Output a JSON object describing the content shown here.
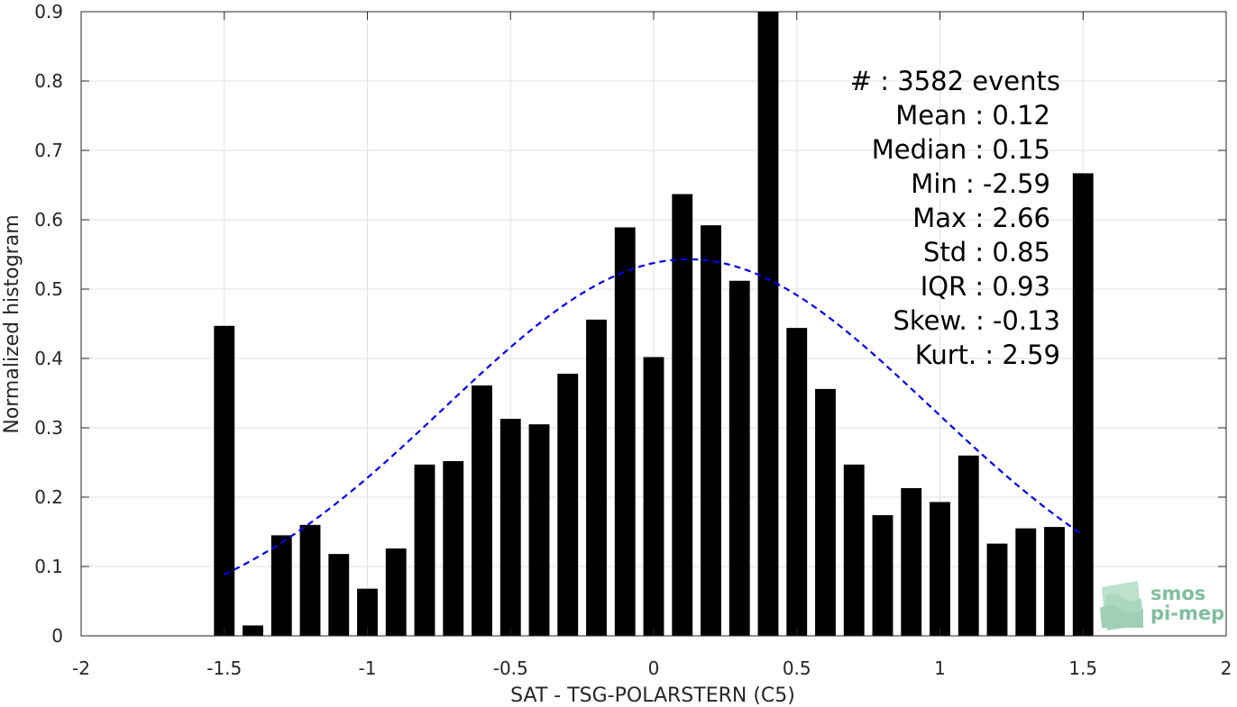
{
  "chart_data": {
    "type": "bar",
    "xlabel": "SAT - TSG-POLARSTERN (C5)",
    "ylabel": "Normalized histogram",
    "xlim": [
      -2,
      2
    ],
    "ylim": [
      0,
      0.9
    ],
    "xticks": [
      -2,
      -1.5,
      -1,
      -0.5,
      0,
      0.5,
      1,
      1.5,
      2
    ],
    "xtick_labels": [
      "-2",
      "-1.5",
      "-1",
      "-0.5",
      "0",
      "0.5",
      "1",
      "1.5",
      "2"
    ],
    "yticks": [
      0,
      0.1,
      0.2,
      0.3,
      0.4,
      0.5,
      0.6,
      0.7,
      0.8,
      0.9
    ],
    "ytick_labels": [
      "0",
      "0.1",
      "0.2",
      "0.3",
      "0.4",
      "0.5",
      "0.6",
      "0.7",
      "0.8",
      "0.9"
    ],
    "grid": true,
    "bar_color": "#000000",
    "bin_width": 0.1,
    "x": [
      -1.5,
      -1.4,
      -1.3,
      -1.2,
      -1.1,
      -1.0,
      -0.9,
      -0.8,
      -0.7,
      -0.6,
      -0.5,
      -0.4,
      -0.3,
      -0.2,
      -0.1,
      0.0,
      0.1,
      0.2,
      0.3,
      0.4,
      0.5,
      0.6,
      0.7,
      0.8,
      0.9,
      1.0,
      1.1,
      1.2,
      1.3,
      1.4,
      1.5
    ],
    "values": [
      0.447,
      0.015,
      0.145,
      0.16,
      0.118,
      0.068,
      0.126,
      0.247,
      0.252,
      0.361,
      0.313,
      0.305,
      0.378,
      0.456,
      0.589,
      0.402,
      0.637,
      0.592,
      0.512,
      0.9,
      0.444,
      0.356,
      0.247,
      0.174,
      0.213,
      0.193,
      0.26,
      0.133,
      0.155,
      0.157,
      0.667
    ],
    "fit": {
      "type": "normal",
      "color": "#0000e6",
      "style": "dashed",
      "mean": 0.12,
      "std": 0.85,
      "peak": 0.543,
      "x_range": [
        -1.5,
        1.5
      ]
    },
    "stats": [
      {
        "label": "#  : 3582 events"
      },
      {
        "label": "Mean : 0.12"
      },
      {
        "label": "Median : 0.15"
      },
      {
        "label": "Min : -2.59"
      },
      {
        "label": "Max : 2.66"
      },
      {
        "label": "Std : 0.85"
      },
      {
        "label": "IQR : 0.93"
      },
      {
        "label": "Skew. : -0.13"
      },
      {
        "label": "Kurt. : 2.59"
      }
    ]
  },
  "logo": {
    "line1": "smos",
    "line2": "pi-mep",
    "color": "#7fbf9f"
  }
}
